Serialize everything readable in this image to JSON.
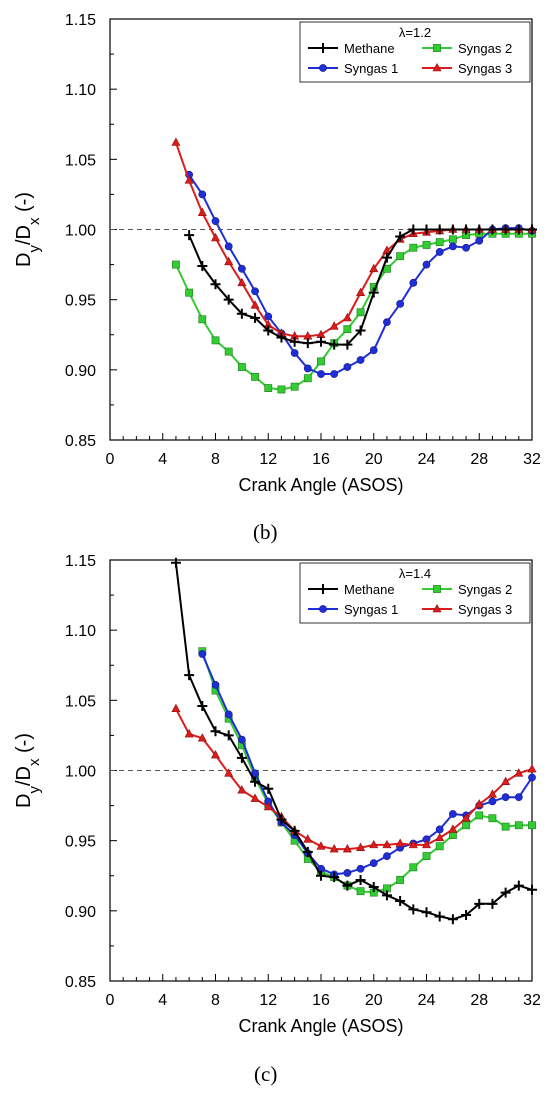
{
  "chart_data": [
    {
      "type": "line",
      "lambda_label": "λ=1.2",
      "panel_label": "(b)",
      "xlabel": "Crank Angle (ASOS)",
      "ylabel": "Dy/Dx (-)",
      "xlim": [
        0,
        32
      ],
      "ylim": [
        0.85,
        1.15
      ],
      "xticks": [
        0,
        4,
        8,
        12,
        16,
        20,
        24,
        28,
        32
      ],
      "yticks": [
        0.85,
        0.9,
        0.95,
        1.0,
        1.05,
        1.1,
        1.15
      ],
      "reference_line_y": 1.0,
      "legend_position": "top-right",
      "series": [
        {
          "name": "Methane",
          "color": "#000000",
          "marker": "plus",
          "x": [
            6,
            7,
            8,
            9,
            10,
            11,
            12,
            13,
            14,
            15,
            16,
            17,
            18,
            19,
            20,
            21,
            22,
            23,
            24,
            25,
            26,
            27,
            28,
            29,
            30,
            31,
            32
          ],
          "y": [
            0.996,
            0.974,
            0.961,
            0.95,
            0.94,
            0.937,
            0.928,
            0.923,
            0.92,
            0.919,
            0.92,
            0.918,
            0.918,
            0.928,
            0.955,
            0.98,
            0.995,
            1.0,
            1.0,
            1.0,
            1.0,
            1.0,
            1.0,
            1.0,
            1.0,
            1.0,
            1.0
          ]
        },
        {
          "name": "Syngas 1",
          "color": "#1f2ed6",
          "marker": "circle",
          "x": [
            6,
            7,
            8,
            9,
            10,
            11,
            12,
            13,
            14,
            15,
            16,
            17,
            18,
            19,
            20,
            21,
            22,
            23,
            24,
            25,
            26,
            27,
            28,
            29,
            30,
            31,
            32
          ],
          "y": [
            1.039,
            1.025,
            1.006,
            0.988,
            0.972,
            0.956,
            0.938,
            0.926,
            0.912,
            0.901,
            0.897,
            0.897,
            0.902,
            0.907,
            0.914,
            0.934,
            0.947,
            0.962,
            0.975,
            0.984,
            0.988,
            0.987,
            0.992,
            1.0,
            1.001,
            1.001,
            0.999
          ]
        },
        {
          "name": "Syngas 2",
          "color": "#33cc33",
          "marker": "square",
          "x": [
            5,
            6,
            7,
            8,
            9,
            10,
            11,
            12,
            13,
            14,
            15,
            16,
            17,
            18,
            19,
            20,
            21,
            22,
            23,
            24,
            25,
            26,
            27,
            28,
            29,
            30,
            31,
            32
          ],
          "y": [
            0.975,
            0.955,
            0.936,
            0.921,
            0.913,
            0.902,
            0.895,
            0.887,
            0.886,
            0.888,
            0.894,
            0.906,
            0.919,
            0.929,
            0.941,
            0.959,
            0.972,
            0.981,
            0.987,
            0.989,
            0.991,
            0.993,
            0.996,
            0.997,
            0.997,
            0.997,
            0.997,
            0.997
          ]
        },
        {
          "name": "Syngas 3",
          "color": "#dd1c1c",
          "marker": "triangle",
          "x": [
            5,
            6,
            7,
            8,
            9,
            10,
            11,
            12,
            13,
            14,
            15,
            16,
            17,
            18,
            19,
            20,
            21,
            22,
            23,
            24,
            25,
            26,
            27,
            28,
            29,
            30,
            31,
            32
          ],
          "y": [
            1.062,
            1.035,
            1.012,
            0.994,
            0.977,
            0.962,
            0.946,
            0.932,
            0.926,
            0.924,
            0.924,
            0.925,
            0.931,
            0.937,
            0.955,
            0.972,
            0.985,
            0.993,
            0.997,
            0.998,
            0.999,
            1.0,
            1.0,
            1.0,
            1.0,
            1.0,
            1.0,
            1.0
          ]
        }
      ]
    },
    {
      "type": "line",
      "lambda_label": "λ=1.4",
      "panel_label": "(c)",
      "xlabel": "Crank Angle (ASOS)",
      "ylabel": "Dy/Dx (-)",
      "xlim": [
        0,
        32
      ],
      "ylim": [
        0.85,
        1.15
      ],
      "xticks": [
        0,
        4,
        8,
        12,
        16,
        20,
        24,
        28,
        32
      ],
      "yticks": [
        0.85,
        0.9,
        0.95,
        1.0,
        1.05,
        1.1,
        1.15
      ],
      "reference_line_y": 1.0,
      "legend_position": "top-right",
      "series": [
        {
          "name": "Methane",
          "color": "#000000",
          "marker": "plus",
          "x": [
            5,
            6,
            7,
            8,
            9,
            10,
            11,
            12,
            13,
            14,
            15,
            16,
            17,
            18,
            19,
            20,
            21,
            22,
            23,
            24,
            25,
            26,
            27,
            28,
            29,
            30,
            31,
            32
          ],
          "y": [
            1.148,
            1.068,
            1.046,
            1.028,
            1.025,
            1.009,
            0.992,
            0.987,
            0.965,
            0.957,
            0.942,
            0.925,
            0.924,
            0.918,
            0.922,
            0.917,
            0.911,
            0.907,
            0.901,
            0.899,
            0.896,
            0.894,
            0.897,
            0.905,
            0.905,
            0.913,
            0.918,
            0.915
          ]
        },
        {
          "name": "Syngas 1",
          "color": "#1f2ed6",
          "marker": "circle",
          "x": [
            7,
            8,
            9,
            10,
            11,
            12,
            13,
            14,
            15,
            16,
            17,
            18,
            19,
            20,
            21,
            22,
            23,
            24,
            25,
            26,
            27,
            28,
            29,
            30,
            31,
            32
          ],
          "y": [
            1.083,
            1.061,
            1.04,
            1.022,
            0.998,
            0.978,
            0.963,
            0.954,
            0.941,
            0.93,
            0.926,
            0.927,
            0.93,
            0.934,
            0.939,
            0.945,
            0.948,
            0.951,
            0.958,
            0.969,
            0.968,
            0.975,
            0.978,
            0.981,
            0.981,
            0.995
          ]
        },
        {
          "name": "Syngas 2",
          "color": "#33cc33",
          "marker": "square",
          "x": [
            7,
            8,
            9,
            10,
            11,
            12,
            13,
            14,
            15,
            16,
            17,
            18,
            19,
            20,
            21,
            22,
            23,
            24,
            25,
            26,
            27,
            28,
            29,
            30,
            31,
            32
          ],
          "y": [
            1.085,
            1.057,
            1.037,
            1.018,
            0.995,
            0.976,
            0.963,
            0.95,
            0.937,
            0.928,
            0.924,
            0.918,
            0.914,
            0.913,
            0.916,
            0.922,
            0.931,
            0.939,
            0.946,
            0.954,
            0.961,
            0.968,
            0.966,
            0.96,
            0.961,
            0.961
          ]
        },
        {
          "name": "Syngas 3",
          "color": "#dd1c1c",
          "marker": "triangle",
          "x": [
            5,
            6,
            7,
            8,
            9,
            10,
            11,
            12,
            13,
            14,
            15,
            16,
            17,
            18,
            19,
            20,
            21,
            22,
            23,
            24,
            25,
            26,
            27,
            28,
            29,
            30,
            31,
            32
          ],
          "y": [
            1.044,
            1.026,
            1.023,
            1.011,
            0.998,
            0.986,
            0.98,
            0.974,
            0.967,
            0.957,
            0.951,
            0.946,
            0.944,
            0.944,
            0.945,
            0.947,
            0.947,
            0.948,
            0.947,
            0.947,
            0.952,
            0.958,
            0.966,
            0.976,
            0.983,
            0.992,
            0.998,
            1.001
          ]
        }
      ]
    }
  ]
}
